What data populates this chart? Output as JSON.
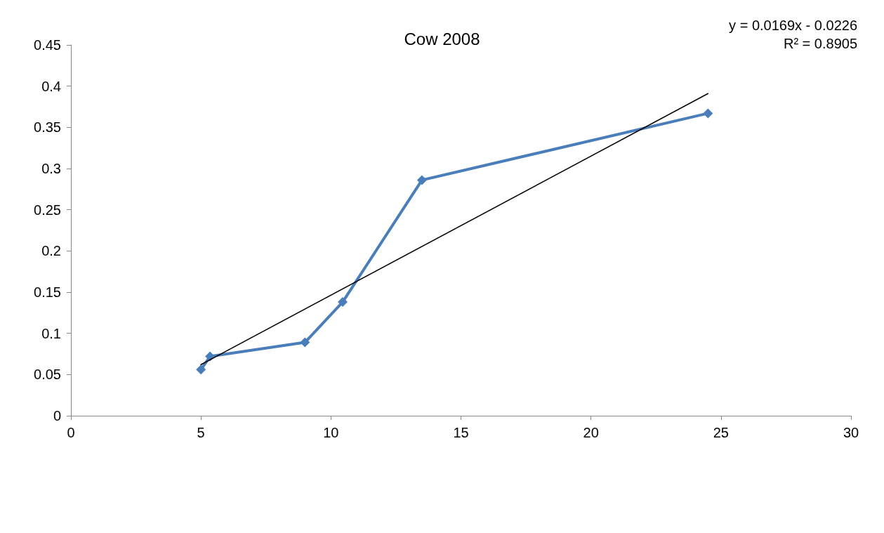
{
  "chart_data": {
    "type": "line",
    "title": "Cow 2008",
    "xlim": [
      0,
      30
    ],
    "xticks": [
      0,
      5,
      10,
      15,
      20,
      25,
      30
    ],
    "ylim": [
      0,
      0.45
    ],
    "yticks": [
      0,
      0.05,
      0.1,
      0.15,
      0.2,
      0.25,
      0.3,
      0.35,
      0.4,
      0.45
    ],
    "grid": false,
    "marker": "diamond",
    "line_style": "solid",
    "series": [
      {
        "color": "#4a7ebb",
        "x": [
          5,
          5.35,
          9,
          10.45,
          13.5,
          24.5
        ],
        "values": [
          0.056,
          0.072,
          0.089,
          0.138,
          0.286,
          0.367
        ]
      },
      {
        "color": "#000000",
        "marker": "none",
        "x": [
          5,
          24.5
        ],
        "values": [
          0.062,
          0.391
        ]
      }
    ],
    "annotations": [
      "y = 0.0169x - 0.0226",
      "R² = 0.8905"
    ]
  }
}
